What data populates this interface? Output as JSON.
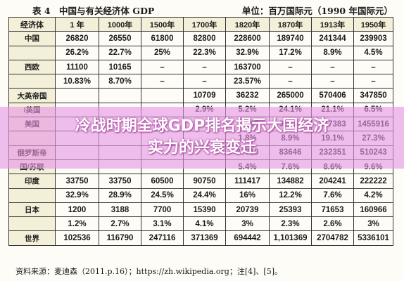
{
  "header": {
    "title": "表 4　中国与有关经济体 GDP",
    "unit": "单位：百万国际元（1990 年国际元）"
  },
  "table": {
    "columns": [
      "经济体",
      "1 年",
      "1000年",
      "1500年",
      "1700年",
      "1820年",
      "1870年",
      "1913年",
      "1950年"
    ],
    "rows": [
      {
        "country": "中国",
        "values": [
          "26820",
          "26550",
          "61800",
          "82800",
          "228600",
          "189740",
          "241344",
          "239903"
        ]
      },
      {
        "country": "",
        "values": [
          "26.2%",
          "22.7%",
          "25%",
          "22.3%",
          "32.9%",
          "17.2%",
          "8.9%",
          "4.5%"
        ]
      },
      {
        "country": "西欧",
        "values": [
          "11100",
          "10165",
          "–",
          "–",
          "163700",
          "–",
          "–",
          "–"
        ]
      },
      {
        "country": "",
        "values": [
          "10.83%",
          "8.70%",
          "–",
          "–",
          "23.57%",
          "–",
          "–",
          "–"
        ]
      },
      {
        "country": "大英帝国",
        "values": [
          "",
          "",
          "",
          "10709",
          "36232",
          "265000",
          "570406",
          "347850"
        ]
      },
      {
        "country": "/英国",
        "values": [
          "",
          "",
          "",
          "2.9%",
          "5.2%",
          "24.1%",
          "21.1%",
          "6.5%"
        ]
      },
      {
        "country": "美国",
        "values": [
          "",
          "",
          "",
          "",
          "12548",
          "98374",
          "517383",
          "1455916"
        ]
      },
      {
        "country": "",
        "values": [
          "",
          "",
          "",
          "",
          "1.8%",
          "8.9%",
          "19.1%",
          "27.3%"
        ]
      },
      {
        "country": "俄罗斯帝",
        "values": [
          "",
          "",
          "",
          "",
          "37710",
          "83646",
          "232351",
          "510243"
        ]
      },
      {
        "country": "国/苏联",
        "values": [
          "",
          "",
          "",
          "",
          "5.4%",
          "7.6%",
          "8.6%",
          "9.6%"
        ]
      },
      {
        "country": "印度",
        "values": [
          "33750",
          "33750",
          "60500",
          "90750",
          "111417",
          "134882",
          "204241",
          "222222"
        ]
      },
      {
        "country": "",
        "values": [
          "32.9%",
          "28.9%",
          "24.5%",
          "24.4%",
          "16%",
          "12.2%",
          "7.6%",
          "4.2%"
        ]
      },
      {
        "country": "日本",
        "values": [
          "1200",
          "3188",
          "7700",
          "15390",
          "20739",
          "25393",
          "71653",
          "160966"
        ]
      },
      {
        "country": "",
        "values": [
          "1.2%",
          "2.7%",
          "3.1%",
          "4.1%",
          "3%",
          "2.3%",
          "2.6%",
          "3%"
        ]
      },
      {
        "country": "世界",
        "values": [
          "102536",
          "116790",
          "247116",
          "371369",
          "694442",
          "1,101369",
          "2704782",
          "5336101"
        ]
      }
    ]
  },
  "source": "资料来源：麦迪森（2011.p.16）；https://zh.wikipedia.org；注[4]、[5]。",
  "overlay": {
    "line1": "冷战时期全球GDP排名揭示大国经济",
    "line2": "实力的兴衰变迁"
  }
}
